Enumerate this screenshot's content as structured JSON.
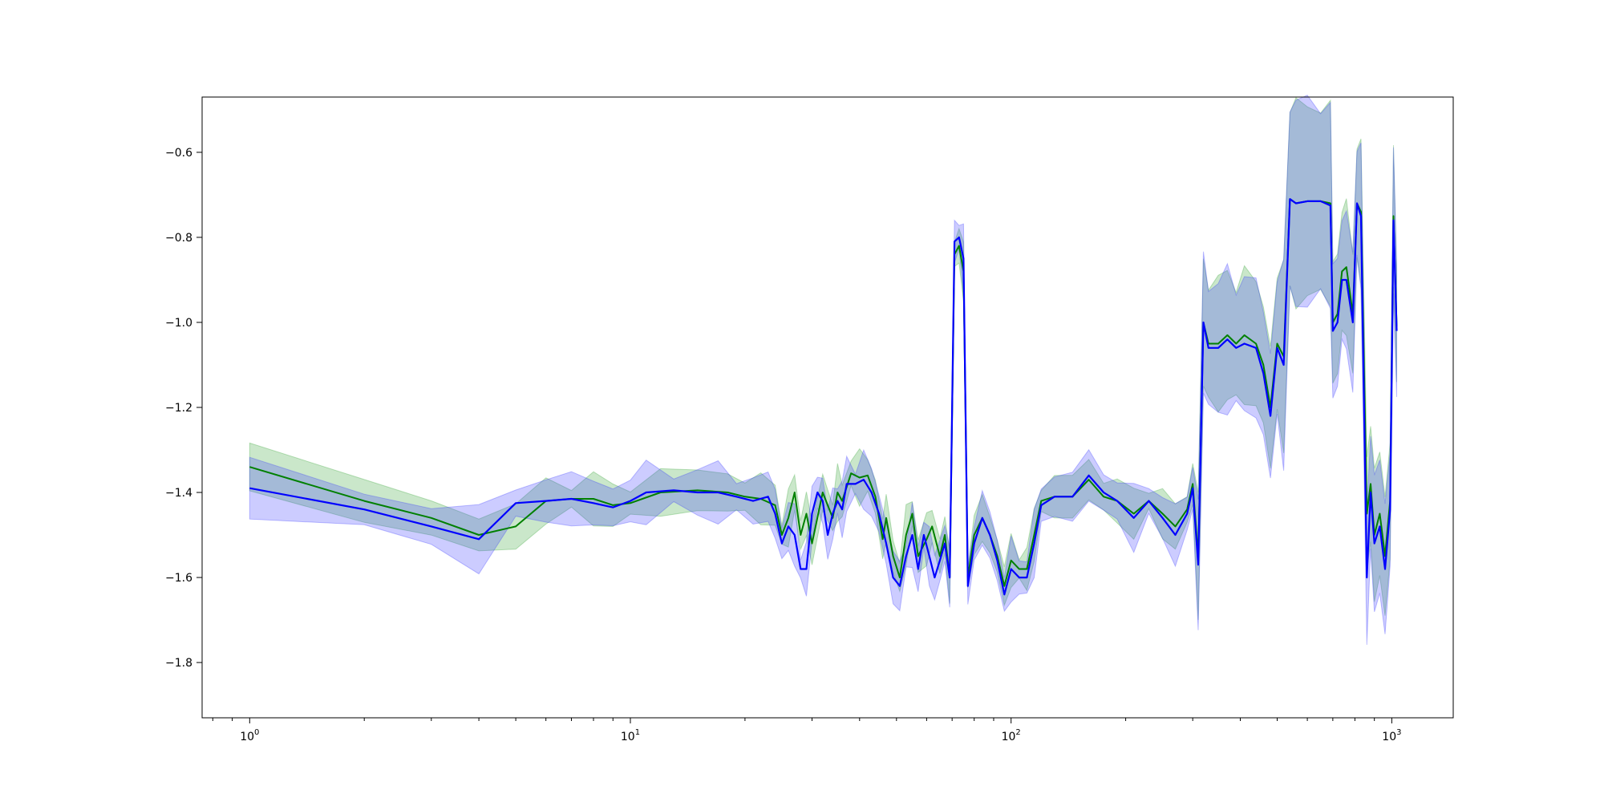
{
  "chart_data": {
    "type": "line",
    "title": "",
    "xlabel": "",
    "ylabel": "",
    "x_scale": "log",
    "xlim": [
      0.75,
      1450
    ],
    "ylim": [
      -1.93,
      -0.47
    ],
    "grid": false,
    "legend": "none",
    "x_ticks": [
      {
        "value": 1,
        "base": "10",
        "exp": "0"
      },
      {
        "value": 10,
        "base": "10",
        "exp": "1"
      },
      {
        "value": 100,
        "base": "10",
        "exp": "2"
      },
      {
        "value": 1000,
        "base": "10",
        "exp": "3"
      }
    ],
    "y_ticks": [
      {
        "value": -1.8,
        "label": "−1.8"
      },
      {
        "value": -1.6,
        "label": "−1.6"
      },
      {
        "value": -1.4,
        "label": "−1.4"
      },
      {
        "value": -1.2,
        "label": "−1.2"
      },
      {
        "value": -1.0,
        "label": "−1.0"
      },
      {
        "value": -0.8,
        "label": "−0.8"
      },
      {
        "value": -0.6,
        "label": "−0.6"
      }
    ],
    "series": [
      {
        "color": "#008000",
        "band_color": "#2ca02c",
        "band_width": 0.045,
        "points": [
          [
            1,
            -1.34
          ],
          [
            2,
            -1.42
          ],
          [
            3,
            -1.46
          ],
          [
            4,
            -1.5
          ],
          [
            5,
            -1.48
          ],
          [
            6,
            -1.42
          ],
          [
            7,
            -1.415
          ],
          [
            8,
            -1.415
          ],
          [
            9,
            -1.43
          ],
          [
            10,
            -1.425
          ],
          [
            12,
            -1.4
          ],
          [
            15,
            -1.395
          ],
          [
            18,
            -1.4
          ],
          [
            20,
            -1.41
          ],
          [
            22,
            -1.415
          ],
          [
            24,
            -1.43
          ],
          [
            25,
            -1.5
          ],
          [
            26,
            -1.46
          ],
          [
            27,
            -1.4
          ],
          [
            28,
            -1.5
          ],
          [
            29,
            -1.45
          ],
          [
            30,
            -1.52
          ],
          [
            32,
            -1.4
          ],
          [
            34,
            -1.46
          ],
          [
            35,
            -1.4
          ],
          [
            36,
            -1.42
          ],
          [
            38,
            -1.355
          ],
          [
            40,
            -1.365
          ],
          [
            42,
            -1.36
          ],
          [
            44,
            -1.41
          ],
          [
            46,
            -1.51
          ],
          [
            47,
            -1.46
          ],
          [
            49,
            -1.55
          ],
          [
            51,
            -1.6
          ],
          [
            53,
            -1.5
          ],
          [
            55,
            -1.45
          ],
          [
            57,
            -1.55
          ],
          [
            60,
            -1.51
          ],
          [
            62,
            -1.48
          ],
          [
            65,
            -1.55
          ],
          [
            67,
            -1.5
          ],
          [
            69,
            -1.6
          ],
          [
            71,
            -0.84
          ],
          [
            73,
            -0.82
          ],
          [
            75,
            -0.88
          ],
          [
            77,
            -1.6
          ],
          [
            80,
            -1.5
          ],
          [
            84,
            -1.46
          ],
          [
            88,
            -1.5
          ],
          [
            92,
            -1.55
          ],
          [
            96,
            -1.62
          ],
          [
            100,
            -1.56
          ],
          [
            105,
            -1.58
          ],
          [
            110,
            -1.58
          ],
          [
            115,
            -1.5
          ],
          [
            120,
            -1.42
          ],
          [
            130,
            -1.41
          ],
          [
            145,
            -1.41
          ],
          [
            160,
            -1.37
          ],
          [
            175,
            -1.41
          ],
          [
            190,
            -1.42
          ],
          [
            210,
            -1.45
          ],
          [
            230,
            -1.42
          ],
          [
            250,
            -1.45
          ],
          [
            270,
            -1.48
          ],
          [
            290,
            -1.44
          ],
          [
            300,
            -1.38
          ],
          [
            310,
            -1.55
          ],
          [
            320,
            -1.0
          ],
          [
            330,
            -1.05
          ],
          [
            350,
            -1.05
          ],
          [
            370,
            -1.03
          ],
          [
            390,
            -1.05
          ],
          [
            410,
            -1.03
          ],
          [
            440,
            -1.05
          ],
          [
            460,
            -1.1
          ],
          [
            480,
            -1.2
          ],
          [
            500,
            -1.05
          ],
          [
            520,
            -1.08
          ],
          [
            540,
            -0.71
          ],
          [
            560,
            -0.72
          ],
          [
            600,
            -0.715
          ],
          [
            650,
            -0.715
          ],
          [
            690,
            -0.72
          ],
          [
            700,
            -1.0
          ],
          [
            720,
            -0.98
          ],
          [
            740,
            -0.88
          ],
          [
            760,
            -0.87
          ],
          [
            790,
            -0.98
          ],
          [
            810,
            -0.72
          ],
          [
            830,
            -0.74
          ],
          [
            860,
            -1.45
          ],
          [
            880,
            -1.38
          ],
          [
            900,
            -1.5
          ],
          [
            930,
            -1.45
          ],
          [
            960,
            -1.55
          ],
          [
            990,
            -1.42
          ],
          [
            1010,
            -0.75
          ],
          [
            1030,
            -1.01
          ]
        ]
      },
      {
        "color": "#0000ff",
        "band_color": "#3333ff",
        "band_width": 0.052,
        "points": [
          [
            1,
            -1.39
          ],
          [
            2,
            -1.44
          ],
          [
            3,
            -1.48
          ],
          [
            4,
            -1.51
          ],
          [
            5,
            -1.425
          ],
          [
            6,
            -1.42
          ],
          [
            7,
            -1.415
          ],
          [
            8,
            -1.425
          ],
          [
            9,
            -1.435
          ],
          [
            10,
            -1.42
          ],
          [
            11,
            -1.4
          ],
          [
            13,
            -1.395
          ],
          [
            15,
            -1.4
          ],
          [
            17,
            -1.4
          ],
          [
            19,
            -1.41
          ],
          [
            21,
            -1.42
          ],
          [
            23,
            -1.41
          ],
          [
            24,
            -1.45
          ],
          [
            25,
            -1.52
          ],
          [
            26,
            -1.48
          ],
          [
            27,
            -1.5
          ],
          [
            28,
            -1.58
          ],
          [
            29,
            -1.58
          ],
          [
            30,
            -1.45
          ],
          [
            31,
            -1.4
          ],
          [
            32,
            -1.42
          ],
          [
            33,
            -1.5
          ],
          [
            34,
            -1.45
          ],
          [
            35,
            -1.42
          ],
          [
            36,
            -1.44
          ],
          [
            37,
            -1.38
          ],
          [
            39,
            -1.38
          ],
          [
            41,
            -1.37
          ],
          [
            43,
            -1.4
          ],
          [
            45,
            -1.45
          ],
          [
            47,
            -1.52
          ],
          [
            49,
            -1.6
          ],
          [
            51,
            -1.62
          ],
          [
            53,
            -1.55
          ],
          [
            55,
            -1.5
          ],
          [
            57,
            -1.58
          ],
          [
            59,
            -1.5
          ],
          [
            61,
            -1.55
          ],
          [
            63,
            -1.6
          ],
          [
            65,
            -1.56
          ],
          [
            67,
            -1.52
          ],
          [
            69,
            -1.6
          ],
          [
            71,
            -0.81
          ],
          [
            73,
            -0.8
          ],
          [
            75,
            -0.85
          ],
          [
            77,
            -1.62
          ],
          [
            80,
            -1.52
          ],
          [
            84,
            -1.46
          ],
          [
            88,
            -1.5
          ],
          [
            92,
            -1.56
          ],
          [
            96,
            -1.64
          ],
          [
            100,
            -1.58
          ],
          [
            105,
            -1.6
          ],
          [
            110,
            -1.6
          ],
          [
            115,
            -1.52
          ],
          [
            120,
            -1.43
          ],
          [
            130,
            -1.41
          ],
          [
            145,
            -1.41
          ],
          [
            160,
            -1.36
          ],
          [
            175,
            -1.4
          ],
          [
            190,
            -1.42
          ],
          [
            210,
            -1.46
          ],
          [
            230,
            -1.42
          ],
          [
            250,
            -1.46
          ],
          [
            270,
            -1.5
          ],
          [
            290,
            -1.45
          ],
          [
            300,
            -1.39
          ],
          [
            310,
            -1.57
          ],
          [
            320,
            -1.0
          ],
          [
            330,
            -1.06
          ],
          [
            350,
            -1.06
          ],
          [
            370,
            -1.04
          ],
          [
            390,
            -1.06
          ],
          [
            410,
            -1.05
          ],
          [
            440,
            -1.06
          ],
          [
            460,
            -1.12
          ],
          [
            480,
            -1.22
          ],
          [
            500,
            -1.06
          ],
          [
            520,
            -1.1
          ],
          [
            540,
            -0.71
          ],
          [
            560,
            -0.72
          ],
          [
            600,
            -0.715
          ],
          [
            650,
            -0.715
          ],
          [
            690,
            -0.725
          ],
          [
            700,
            -1.02
          ],
          [
            720,
            -1.0
          ],
          [
            740,
            -0.9
          ],
          [
            760,
            -0.9
          ],
          [
            790,
            -1.0
          ],
          [
            810,
            -0.72
          ],
          [
            830,
            -0.75
          ],
          [
            860,
            -1.6
          ],
          [
            880,
            -1.4
          ],
          [
            900,
            -1.52
          ],
          [
            930,
            -1.48
          ],
          [
            960,
            -1.58
          ],
          [
            990,
            -1.44
          ],
          [
            1010,
            -0.76
          ],
          [
            1030,
            -1.02
          ]
        ]
      }
    ]
  }
}
